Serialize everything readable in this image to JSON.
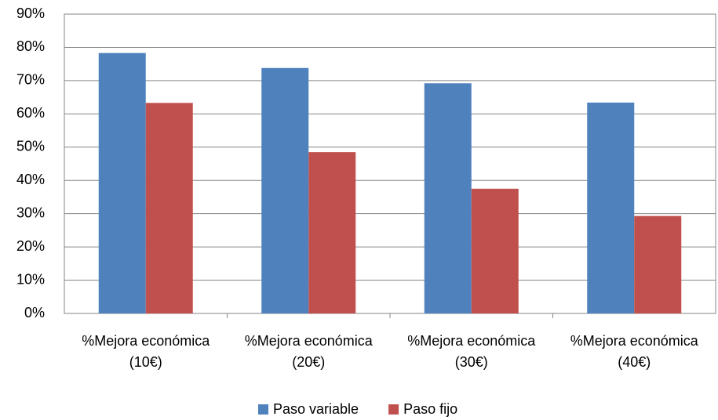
{
  "chart_data": {
    "type": "bar",
    "categories": [
      "%Mejora económica (10€)",
      "%Mejora económica (20€)",
      "%Mejora económica (30€)",
      "%Mejora económica (40€)"
    ],
    "series": [
      {
        "name": "Paso variable",
        "color": "#4f81bd",
        "values": [
          78.3,
          73.8,
          69.2,
          63.4
        ]
      },
      {
        "name": "Paso fijo",
        "color": "#c0504d",
        "values": [
          63.3,
          48.5,
          37.5,
          29.3
        ]
      }
    ],
    "ylim": [
      0,
      90
    ],
    "yticks": [
      {
        "value": 0,
        "label": "0%"
      },
      {
        "value": 10,
        "label": "10%"
      },
      {
        "value": 20,
        "label": "20%"
      },
      {
        "value": 30,
        "label": "30%"
      },
      {
        "value": 40,
        "label": "40%"
      },
      {
        "value": 50,
        "label": "50%"
      },
      {
        "value": 60,
        "label": "60%"
      },
      {
        "value": 70,
        "label": "70%"
      },
      {
        "value": 80,
        "label": "80%"
      },
      {
        "value": 90,
        "label": "90%"
      }
    ],
    "grid": true,
    "legend": "bottom"
  }
}
